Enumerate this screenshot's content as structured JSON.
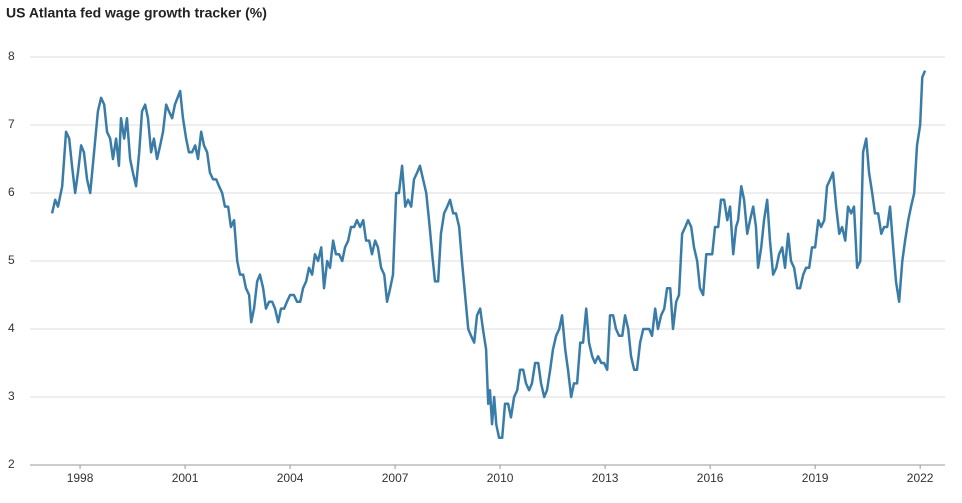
{
  "chart_data": {
    "type": "line",
    "title": "US Atlanta fed wage growth tracker (%)",
    "color": "#3a7ca8",
    "grid": true,
    "xlim": [
      1996.57,
      2022.71
    ],
    "xticks": [
      1998,
      2001,
      2004,
      2007,
      2010,
      2013,
      2016,
      2019,
      2022
    ],
    "ylim": [
      2,
      8.25
    ],
    "yticks": [
      2,
      3,
      4,
      5,
      6,
      7,
      8
    ],
    "x": [
      1997.2,
      1997.29,
      1997.37,
      1997.49,
      1997.6,
      1997.69,
      1997.77,
      1997.86,
      1997.94,
      1998.03,
      1998.11,
      1998.2,
      1998.29,
      1998.4,
      1998.51,
      1998.6,
      1998.69,
      1998.77,
      1998.86,
      1998.94,
      1999.03,
      1999.11,
      1999.17,
      1999.26,
      1999.34,
      1999.43,
      1999.51,
      1999.6,
      1999.69,
      1999.77,
      1999.86,
      1999.94,
      2000.03,
      2000.11,
      2000.2,
      2000.29,
      2000.37,
      2000.46,
      2000.54,
      2000.63,
      2000.71,
      2000.86,
      2000.94,
      2001.03,
      2001.11,
      2001.2,
      2001.29,
      2001.37,
      2001.46,
      2001.54,
      2001.63,
      2001.71,
      2001.8,
      2001.89,
      2001.97,
      2002.06,
      2002.14,
      2002.23,
      2002.31,
      2002.4,
      2002.49,
      2002.57,
      2002.66,
      2002.74,
      2002.83,
      2002.89,
      2002.97,
      2003.06,
      2003.14,
      2003.23,
      2003.31,
      2003.4,
      2003.49,
      2003.57,
      2003.66,
      2003.74,
      2003.83,
      2003.91,
      2004.0,
      2004.11,
      2004.2,
      2004.29,
      2004.37,
      2004.46,
      2004.54,
      2004.63,
      2004.71,
      2004.8,
      2004.89,
      2004.97,
      2005.06,
      2005.14,
      2005.23,
      2005.31,
      2005.4,
      2005.49,
      2005.57,
      2005.66,
      2005.74,
      2005.83,
      2005.91,
      2006.0,
      2006.09,
      2006.17,
      2006.26,
      2006.34,
      2006.43,
      2006.51,
      2006.6,
      2006.69,
      2006.77,
      2006.86,
      2006.94,
      2007.03,
      2007.11,
      2007.2,
      2007.29,
      2007.37,
      2007.46,
      2007.54,
      2007.63,
      2007.71,
      2007.8,
      2007.89,
      2007.97,
      2008.06,
      2008.14,
      2008.23,
      2008.31,
      2008.4,
      2008.49,
      2008.57,
      2008.66,
      2008.74,
      2008.83,
      2008.91,
      2009.0,
      2009.09,
      2009.17,
      2009.26,
      2009.34,
      2009.43,
      2009.51,
      2009.6,
      2009.66,
      2009.71,
      2009.77,
      2009.83,
      2009.89,
      2009.97,
      2010.06,
      2010.14,
      2010.23,
      2010.31,
      2010.4,
      2010.49,
      2010.57,
      2010.66,
      2010.74,
      2010.83,
      2010.91,
      2011.0,
      2011.09,
      2011.17,
      2011.26,
      2011.34,
      2011.43,
      2011.51,
      2011.6,
      2011.69,
      2011.77,
      2011.86,
      2011.94,
      2012.03,
      2012.11,
      2012.2,
      2012.29,
      2012.37,
      2012.46,
      2012.54,
      2012.63,
      2012.71,
      2012.8,
      2012.89,
      2012.97,
      2013.06,
      2013.14,
      2013.23,
      2013.31,
      2013.4,
      2013.49,
      2013.57,
      2013.66,
      2013.74,
      2013.83,
      2013.91,
      2014.0,
      2014.09,
      2014.17,
      2014.26,
      2014.34,
      2014.43,
      2014.51,
      2014.6,
      2014.69,
      2014.77,
      2014.86,
      2014.94,
      2015.03,
      2015.11,
      2015.2,
      2015.29,
      2015.37,
      2015.46,
      2015.54,
      2015.63,
      2015.71,
      2015.8,
      2015.89,
      2015.97,
      2016.06,
      2016.14,
      2016.23,
      2016.31,
      2016.4,
      2016.49,
      2016.57,
      2016.66,
      2016.74,
      2016.8,
      2016.89,
      2016.97,
      2017.06,
      2017.14,
      2017.23,
      2017.31,
      2017.37,
      2017.46,
      2017.54,
      2017.63,
      2017.71,
      2017.8,
      2017.89,
      2017.97,
      2018.06,
      2018.14,
      2018.23,
      2018.31,
      2018.4,
      2018.49,
      2018.57,
      2018.66,
      2018.74,
      2018.83,
      2018.91,
      2019.0,
      2019.09,
      2019.17,
      2019.26,
      2019.34,
      2019.43,
      2019.51,
      2019.6,
      2019.69,
      2019.77,
      2019.86,
      2019.94,
      2020.03,
      2020.11,
      2020.2,
      2020.29,
      2020.37,
      2020.46,
      2020.54,
      2020.63,
      2020.71,
      2020.8,
      2020.89,
      2020.97,
      2021.06,
      2021.14,
      2021.23,
      2021.31,
      2021.4,
      2021.49,
      2021.57,
      2021.66,
      2021.74,
      2021.83,
      2021.91,
      2022.0,
      2022.06,
      2022.14
    ],
    "values": [
      5.7,
      5.9,
      5.8,
      6.1,
      6.9,
      6.8,
      6.4,
      6.0,
      6.3,
      6.7,
      6.6,
      6.2,
      6.0,
      6.6,
      7.2,
      7.4,
      7.3,
      6.9,
      6.8,
      6.5,
      6.8,
      6.4,
      7.1,
      6.8,
      7.1,
      6.5,
      6.3,
      6.1,
      6.6,
      7.2,
      7.3,
      7.1,
      6.6,
      6.8,
      6.5,
      6.7,
      6.9,
      7.3,
      7.2,
      7.1,
      7.3,
      7.5,
      7.1,
      6.8,
      6.6,
      6.6,
      6.7,
      6.5,
      6.9,
      6.7,
      6.6,
      6.3,
      6.2,
      6.2,
      6.1,
      6.0,
      5.8,
      5.8,
      5.5,
      5.6,
      5.0,
      4.8,
      4.8,
      4.6,
      4.5,
      4.1,
      4.3,
      4.7,
      4.8,
      4.6,
      4.3,
      4.4,
      4.4,
      4.3,
      4.1,
      4.3,
      4.3,
      4.4,
      4.5,
      4.5,
      4.4,
      4.4,
      4.6,
      4.7,
      4.9,
      4.8,
      5.1,
      5.0,
      5.2,
      4.6,
      5.0,
      4.9,
      5.3,
      5.1,
      5.1,
      5.0,
      5.2,
      5.3,
      5.5,
      5.5,
      5.6,
      5.5,
      5.6,
      5.3,
      5.3,
      5.1,
      5.3,
      5.2,
      4.9,
      4.8,
      4.4,
      4.6,
      4.8,
      6.0,
      6.0,
      6.4,
      5.8,
      5.9,
      5.8,
      6.2,
      6.3,
      6.4,
      6.2,
      6.0,
      5.6,
      5.1,
      4.7,
      4.7,
      5.4,
      5.7,
      5.8,
      5.9,
      5.7,
      5.7,
      5.5,
      5.0,
      4.5,
      4.0,
      3.9,
      3.8,
      4.2,
      4.3,
      4.0,
      3.7,
      2.9,
      3.1,
      2.6,
      3.0,
      2.6,
      2.4,
      2.4,
      2.9,
      2.9,
      2.7,
      3.0,
      3.1,
      3.4,
      3.4,
      3.2,
      3.1,
      3.2,
      3.5,
      3.5,
      3.2,
      3.0,
      3.1,
      3.4,
      3.7,
      3.9,
      4.0,
      4.2,
      3.7,
      3.4,
      3.0,
      3.2,
      3.2,
      3.8,
      3.8,
      4.3,
      3.8,
      3.6,
      3.5,
      3.6,
      3.5,
      3.5,
      3.4,
      4.2,
      4.2,
      4.0,
      3.9,
      3.9,
      4.2,
      4.0,
      3.6,
      3.4,
      3.4,
      3.8,
      4.0,
      4.0,
      4.0,
      3.9,
      4.3,
      4.0,
      4.2,
      4.3,
      4.6,
      4.6,
      4.0,
      4.4,
      4.5,
      5.4,
      5.5,
      5.6,
      5.5,
      5.2,
      5.0,
      4.6,
      4.5,
      5.1,
      5.1,
      5.1,
      5.5,
      5.5,
      5.9,
      5.9,
      5.6,
      5.8,
      5.1,
      5.5,
      5.6,
      6.1,
      5.9,
      5.4,
      5.6,
      5.8,
      5.5,
      4.9,
      5.2,
      5.6,
      5.9,
      5.3,
      4.8,
      4.9,
      5.1,
      5.2,
      4.9,
      5.4,
      5.0,
      4.9,
      4.6,
      4.6,
      4.8,
      4.9,
      4.9,
      5.2,
      5.2,
      5.6,
      5.5,
      5.6,
      6.1,
      6.2,
      6.3,
      5.8,
      5.4,
      5.5,
      5.3,
      5.8,
      5.7,
      5.8,
      4.9,
      5.0,
      6.6,
      6.8,
      6.3,
      6.0,
      5.7,
      5.7,
      5.4,
      5.5,
      5.5,
      5.8,
      5.2,
      4.7,
      4.4,
      5.0,
      5.3,
      5.6,
      5.8,
      6.0,
      6.7,
      7.0,
      7.7,
      7.8
    ]
  }
}
